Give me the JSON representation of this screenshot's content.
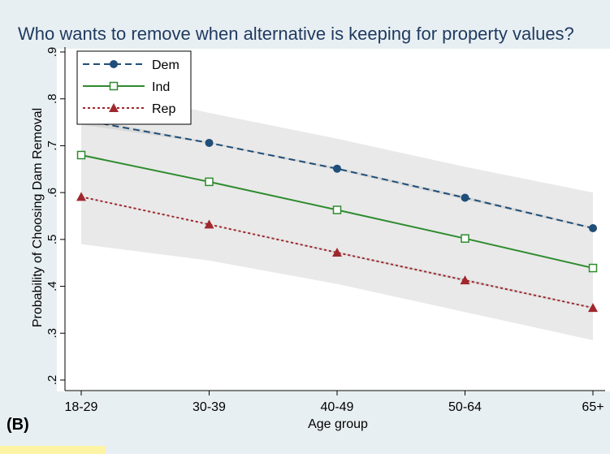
{
  "panel_label": "(B)",
  "chart_data": {
    "type": "line",
    "title": "Who wants to remove when alternative is keeping for property values?",
    "xlabel": "Age group",
    "ylabel": "Probability of Choosing Dam Removal",
    "categories": [
      "18-29",
      "30-39",
      "40-49",
      "50-64",
      "65+"
    ],
    "ylim": [
      0.2,
      0.9
    ],
    "yticks": [
      ".2",
      ".3",
      ".4",
      ".5",
      ".6",
      ".7",
      ".8",
      ".9"
    ],
    "ytick_values": [
      0.2,
      0.3,
      0.4,
      0.5,
      0.6,
      0.7,
      0.8,
      0.9
    ],
    "grid": false,
    "legend_position": "top-left",
    "series": [
      {
        "name": "Dem",
        "values": [
          0.755,
          0.706,
          0.651,
          0.589,
          0.524
        ],
        "color": "#1f4e79",
        "line": "dashed",
        "marker": "filled-circle"
      },
      {
        "name": "Ind",
        "values": [
          0.68,
          0.623,
          0.563,
          0.502,
          0.439
        ],
        "color": "#2e8b2e",
        "line": "solid",
        "marker": "hollow-square"
      },
      {
        "name": "Rep",
        "values": [
          0.591,
          0.532,
          0.472,
          0.413,
          0.354
        ],
        "color": "#a0282d",
        "line": "dotted",
        "marker": "filled-triangle"
      }
    ],
    "confidence_bands": [
      {
        "series": "Dem",
        "lower": [
          0.745,
          0.705,
          0.648,
          0.585,
          0.522
        ],
        "upper": [
          0.76,
          0.708,
          0.654,
          0.592,
          0.527
        ]
      },
      {
        "series": "Ind",
        "lower": [
          0.49,
          0.455,
          0.405,
          0.345,
          0.285
        ],
        "upper": [
          0.83,
          0.77,
          0.715,
          0.655,
          0.6
        ]
      },
      {
        "series": "Rep",
        "lower": [
          0.59,
          0.532,
          0.47,
          0.41,
          0.353
        ],
        "upper": [
          0.592,
          0.533,
          0.474,
          0.416,
          0.356
        ]
      }
    ],
    "colors": {
      "background": "#e8eff3",
      "plot_background": "#ffffff",
      "band": "#999999"
    }
  }
}
